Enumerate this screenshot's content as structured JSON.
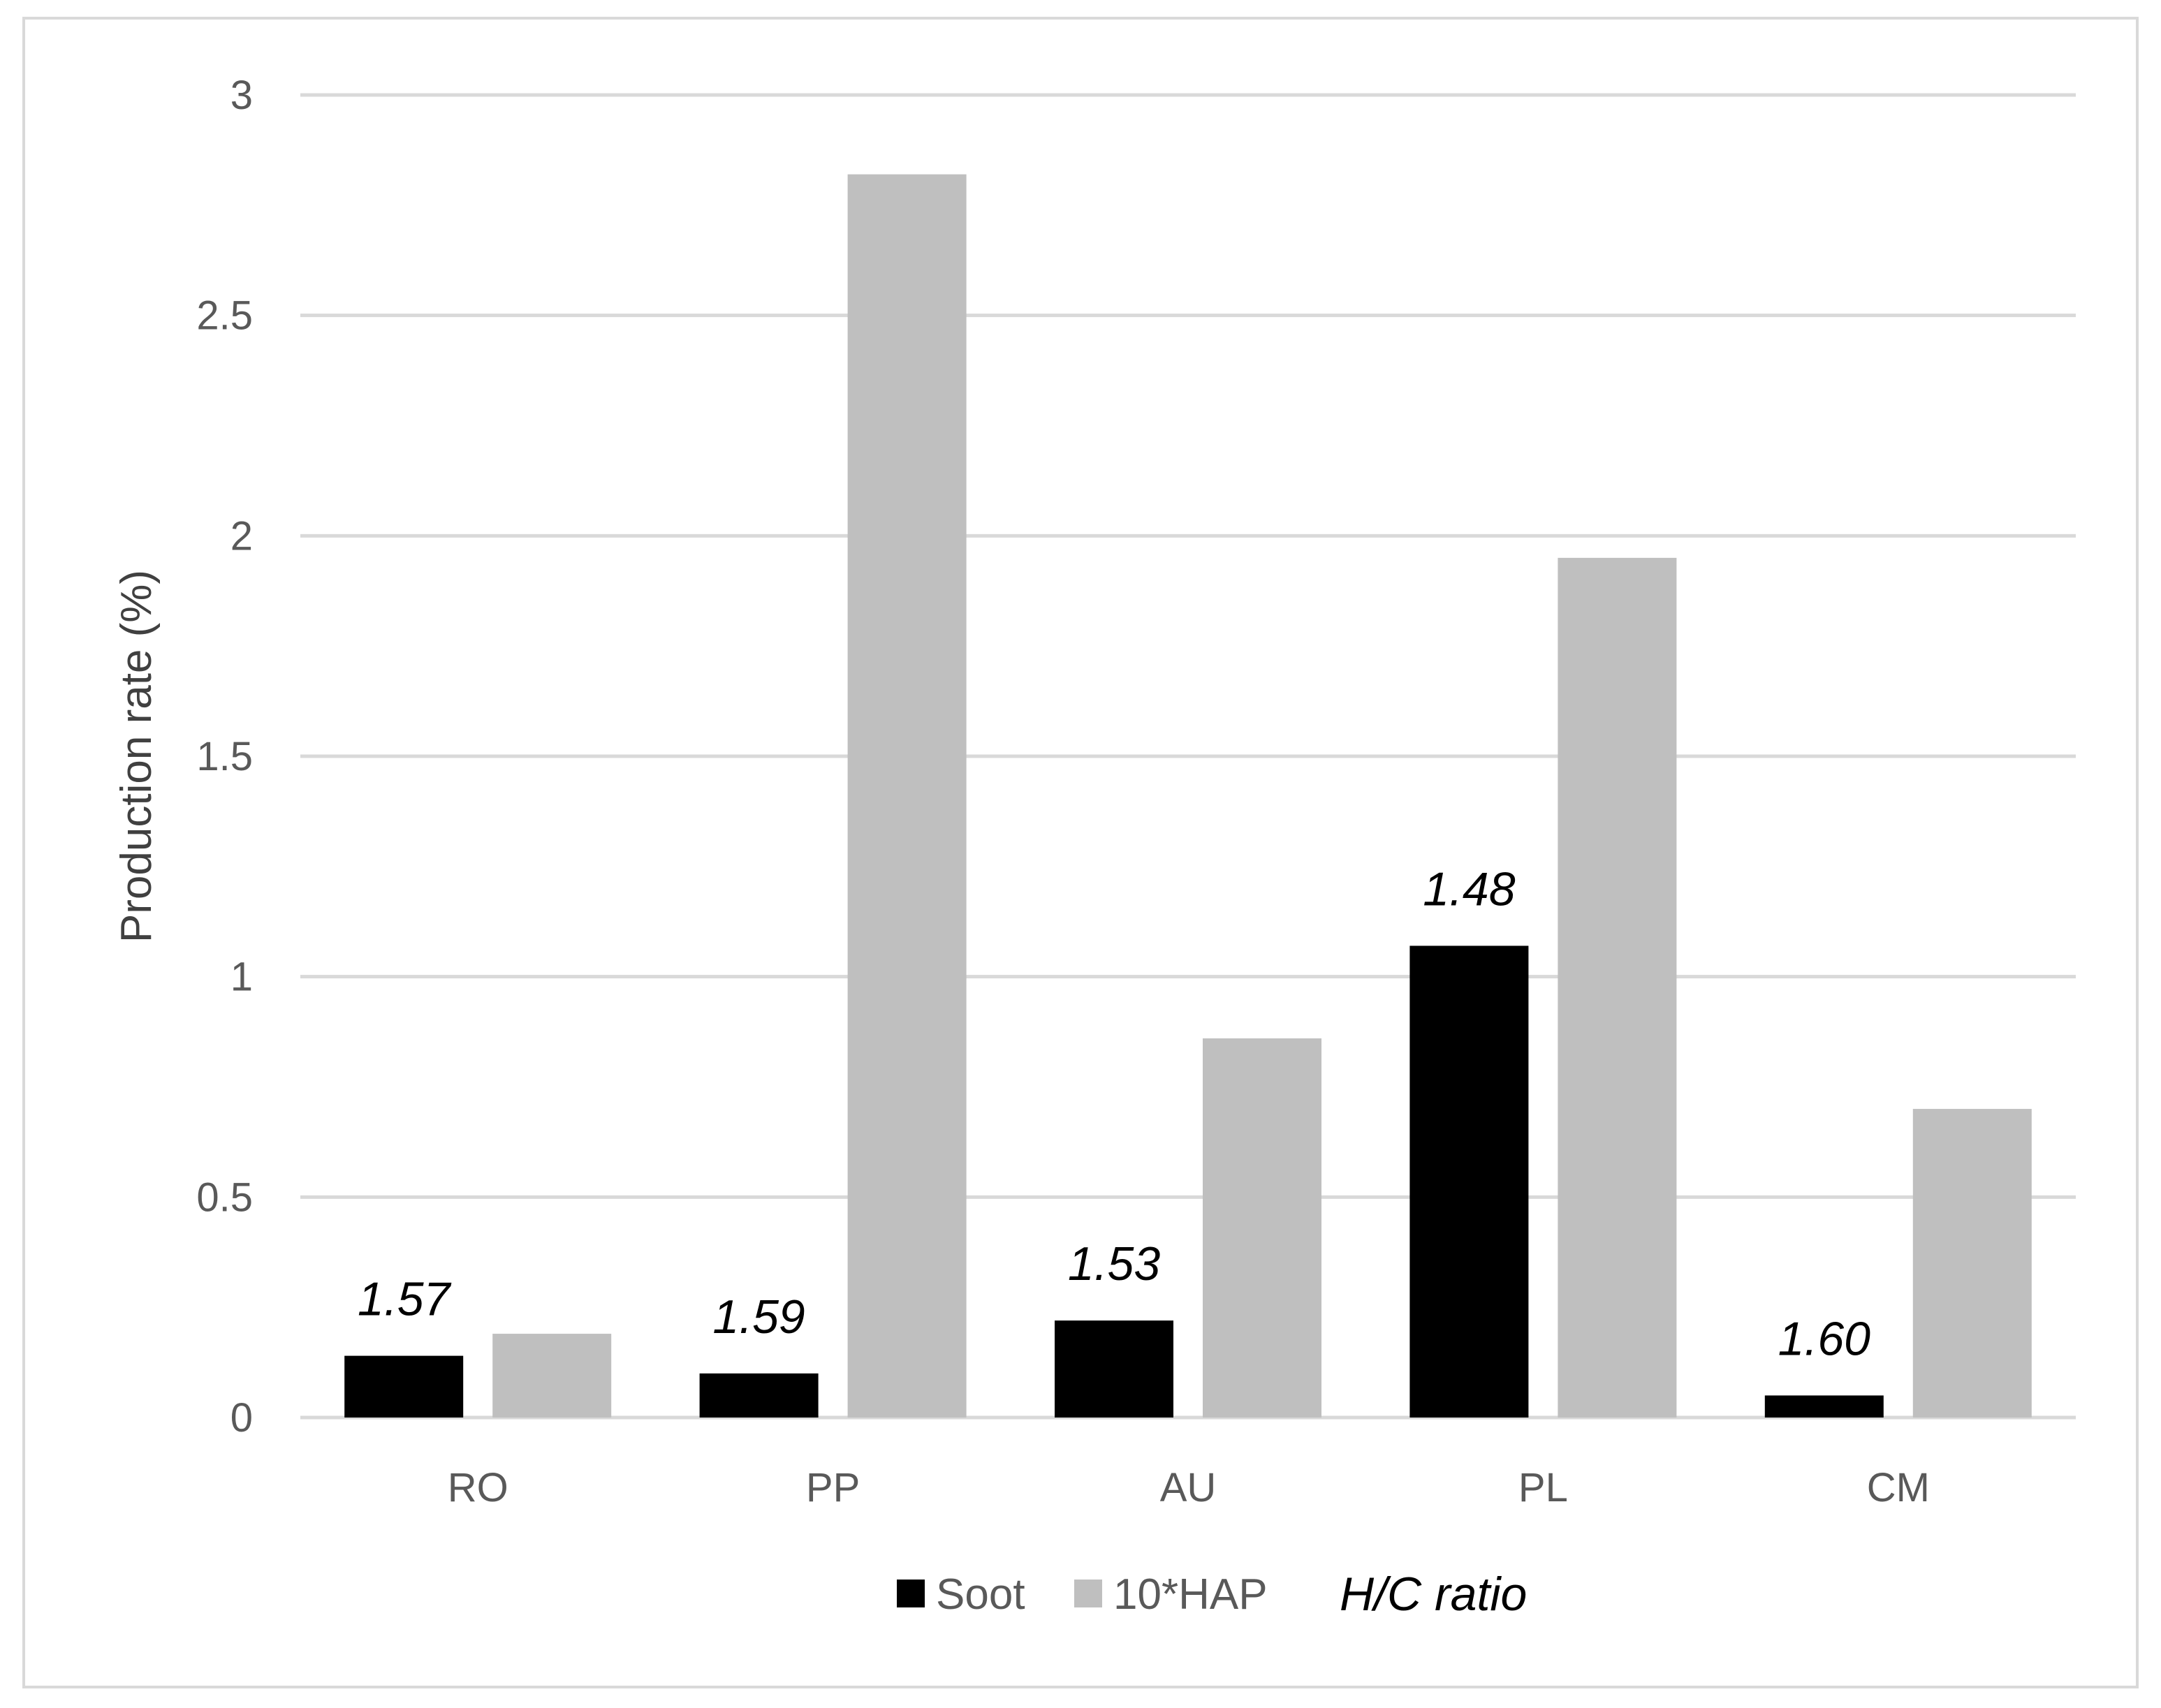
{
  "chart_data": {
    "type": "bar",
    "categories": [
      "RO",
      "PP",
      "AU",
      "PL",
      "CM"
    ],
    "series": [
      {
        "name": "Soot",
        "values": [
          0.14,
          0.1,
          0.22,
          1.07,
          0.05
        ],
        "color": "#000000"
      },
      {
        "name": "10*HAP",
        "values": [
          0.19,
          2.82,
          0.86,
          1.95,
          0.7
        ],
        "color": "#bfbfbf"
      }
    ],
    "bar_annotations": {
      "series": "Soot",
      "labels": [
        "1.57",
        "1.59",
        "1.53",
        "1.48",
        "1.60"
      ]
    },
    "title": "",
    "xlabel": "",
    "ylabel": "Production rate (%)",
    "ylim": [
      0,
      3
    ],
    "yticks": [
      "0",
      "0.5",
      "1",
      "1.5",
      "2",
      "2.5",
      "3"
    ],
    "grid": true,
    "legend": {
      "position": "bottom",
      "entries": [
        "Soot",
        "10*HAP"
      ],
      "note": "H/C ratio"
    }
  }
}
